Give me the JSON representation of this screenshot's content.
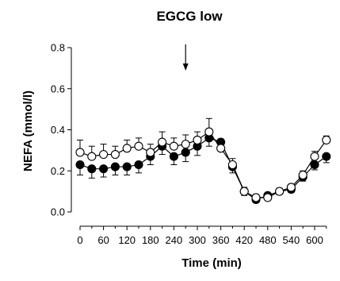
{
  "chart_data": {
    "type": "line",
    "title": "EGCG low",
    "xlabel": "Time (min)",
    "ylabel": "NEFA (mmol/l)",
    "xlim": [
      -15,
      645
    ],
    "ylim": [
      0.0,
      0.8
    ],
    "x_ticks": [
      0,
      60,
      120,
      180,
      240,
      300,
      360,
      420,
      480,
      540,
      600
    ],
    "x_tick_labels": [
      "0",
      "60",
      "120",
      "180",
      "240",
      "300",
      "360",
      "420",
      "480",
      "540",
      "600"
    ],
    "y_ticks": [
      0.0,
      0.2,
      0.4,
      0.6,
      0.8
    ],
    "y_tick_labels": [
      "0.0",
      "0.2",
      "0.4",
      "0.6",
      "0.8"
    ],
    "grid": false,
    "legend": "none",
    "annotations": [
      {
        "type": "arrow",
        "x": 270,
        "direction": "down"
      }
    ],
    "x": [
      0,
      30,
      60,
      90,
      120,
      150,
      180,
      210,
      240,
      270,
      300,
      330,
      360,
      390,
      420,
      450,
      480,
      510,
      540,
      570,
      600,
      630
    ],
    "series": [
      {
        "marker": "filled-circle",
        "color": "#000000",
        "values": [
          0.23,
          0.21,
          0.21,
          0.22,
          0.22,
          0.23,
          0.27,
          0.32,
          0.27,
          0.29,
          0.32,
          0.36,
          0.34,
          0.22,
          0.1,
          0.06,
          0.08,
          0.1,
          0.11,
          0.17,
          0.23,
          0.27
        ],
        "errors": [
          0.05,
          0.045,
          0.04,
          0.04,
          0.04,
          0.04,
          0.04,
          0.04,
          0.04,
          0.045,
          0.045,
          0.04,
          0.04,
          0.03,
          0.02,
          0.015,
          0.015,
          0.015,
          0.015,
          0.02,
          0.025,
          0.03
        ]
      },
      {
        "marker": "open-circle",
        "color": "#000000",
        "values": [
          0.29,
          0.27,
          0.28,
          0.28,
          0.31,
          0.32,
          0.29,
          0.34,
          0.32,
          0.33,
          0.35,
          0.39,
          0.31,
          0.23,
          0.1,
          0.07,
          0.07,
          0.1,
          0.12,
          0.18,
          0.27,
          0.35
        ],
        "errors": [
          0.06,
          0.05,
          0.05,
          0.04,
          0.04,
          0.04,
          0.04,
          0.05,
          0.04,
          0.045,
          0.04,
          0.065,
          0.045,
          0.03,
          0.02,
          0.015,
          0.015,
          0.015,
          0.015,
          0.02,
          0.025,
          0.02
        ]
      }
    ]
  }
}
